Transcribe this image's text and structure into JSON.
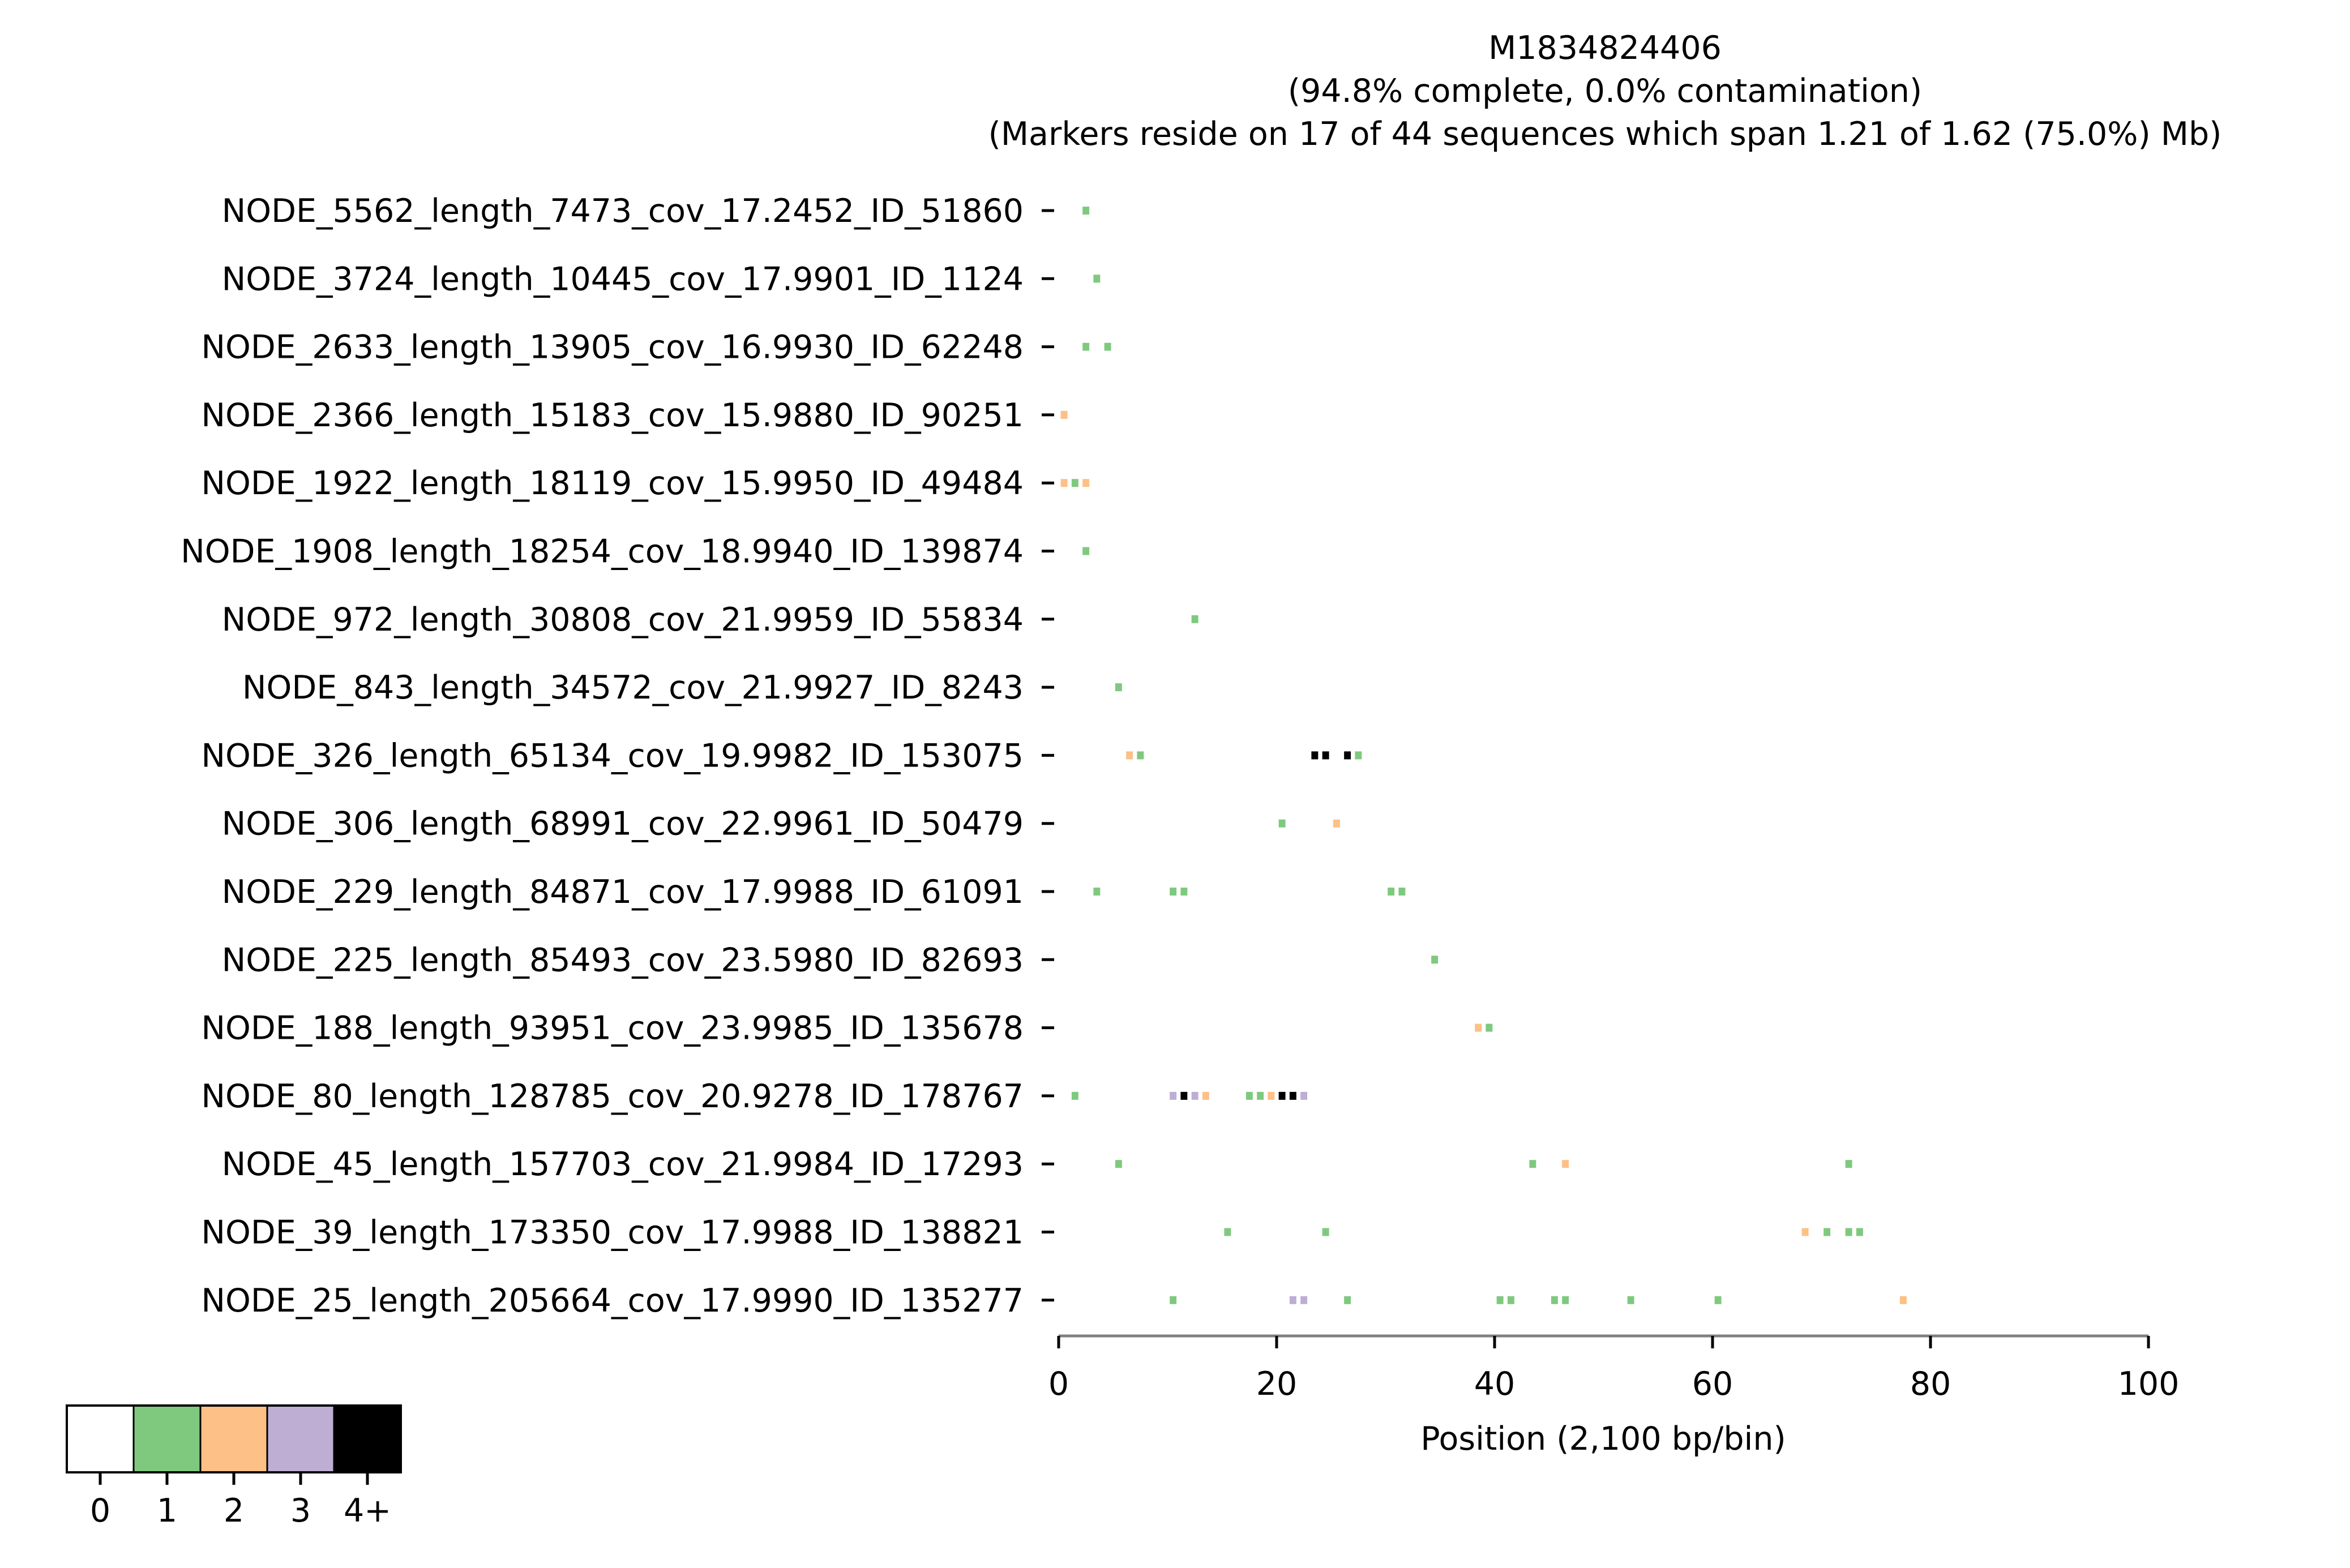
{
  "chart_data": {
    "type": "heatmap",
    "title": "M1834824406",
    "subtitle_1": "(94.8% complete, 0.0% contamination)",
    "subtitle_2": "(Markers reside on 17 of 44 sequences which span 1.21 of 1.62 (75.0%) Mb)",
    "xlabel": "Position (2,100 bp/bin)",
    "xlim": [
      0,
      100
    ],
    "xticks": [
      "0",
      "20",
      "40",
      "60",
      "80",
      "100"
    ],
    "xtick_values": [
      0,
      20,
      40,
      60,
      80,
      100
    ],
    "colors": {
      "0": "#ffffff",
      "1": "#7fc97f",
      "2": "#fdc086",
      "3": "#beaed4",
      "4": "#000000"
    },
    "legend": {
      "labels": [
        "0",
        "1",
        "2",
        "3",
        "4+"
      ],
      "colors": [
        "#ffffff",
        "#7fc97f",
        "#fdc086",
        "#beaed4",
        "#000000"
      ]
    },
    "sequences": [
      {
        "name": "NODE_5562_length_7473_cov_17.2452_ID_51860",
        "bins": [
          [
            2,
            1
          ]
        ]
      },
      {
        "name": "NODE_3724_length_10445_cov_17.9901_ID_1124",
        "bins": [
          [
            3,
            1
          ]
        ]
      },
      {
        "name": "NODE_2633_length_13905_cov_16.9930_ID_62248",
        "bins": [
          [
            2,
            1
          ],
          [
            4,
            1
          ]
        ]
      },
      {
        "name": "NODE_2366_length_15183_cov_15.9880_ID_90251",
        "bins": [
          [
            0,
            2
          ]
        ]
      },
      {
        "name": "NODE_1922_length_18119_cov_15.9950_ID_49484",
        "bins": [
          [
            0,
            2
          ],
          [
            1,
            1
          ],
          [
            2,
            2
          ]
        ]
      },
      {
        "name": "NODE_1908_length_18254_cov_18.9940_ID_139874",
        "bins": [
          [
            2,
            1
          ]
        ]
      },
      {
        "name": "NODE_972_length_30808_cov_21.9959_ID_55834",
        "bins": [
          [
            12,
            1
          ]
        ]
      },
      {
        "name": "NODE_843_length_34572_cov_21.9927_ID_8243",
        "bins": [
          [
            5,
            1
          ]
        ]
      },
      {
        "name": "NODE_326_length_65134_cov_19.9982_ID_153075",
        "bins": [
          [
            6,
            2
          ],
          [
            7,
            1
          ],
          [
            23,
            4
          ],
          [
            24,
            4
          ],
          [
            26,
            4
          ],
          [
            27,
            1
          ]
        ]
      },
      {
        "name": "NODE_306_length_68991_cov_22.9961_ID_50479",
        "bins": [
          [
            20,
            1
          ],
          [
            25,
            2
          ]
        ]
      },
      {
        "name": "NODE_229_length_84871_cov_17.9988_ID_61091",
        "bins": [
          [
            3,
            1
          ],
          [
            10,
            1
          ],
          [
            11,
            1
          ],
          [
            30,
            1
          ],
          [
            31,
            1
          ]
        ]
      },
      {
        "name": "NODE_225_length_85493_cov_23.5980_ID_82693",
        "bins": [
          [
            34,
            1
          ]
        ]
      },
      {
        "name": "NODE_188_length_93951_cov_23.9985_ID_135678",
        "bins": [
          [
            38,
            2
          ],
          [
            39,
            1
          ]
        ]
      },
      {
        "name": "NODE_80_length_128785_cov_20.9278_ID_178767",
        "bins": [
          [
            1,
            1
          ],
          [
            10,
            3
          ],
          [
            11,
            4
          ],
          [
            12,
            3
          ],
          [
            13,
            2
          ],
          [
            17,
            1
          ],
          [
            18,
            1
          ],
          [
            19,
            2
          ],
          [
            20,
            4
          ],
          [
            21,
            4
          ],
          [
            22,
            3
          ]
        ]
      },
      {
        "name": "NODE_45_length_157703_cov_21.9984_ID_17293",
        "bins": [
          [
            5,
            1
          ],
          [
            43,
            1
          ],
          [
            46,
            2
          ],
          [
            72,
            1
          ]
        ]
      },
      {
        "name": "NODE_39_length_173350_cov_17.9988_ID_138821",
        "bins": [
          [
            15,
            1
          ],
          [
            24,
            1
          ],
          [
            68,
            2
          ],
          [
            70,
            1
          ],
          [
            72,
            1
          ],
          [
            73,
            1
          ]
        ]
      },
      {
        "name": "NODE_25_length_205664_cov_17.9990_ID_135277",
        "bins": [
          [
            10,
            1
          ],
          [
            21,
            3
          ],
          [
            22,
            3
          ],
          [
            26,
            1
          ],
          [
            40,
            1
          ],
          [
            41,
            1
          ],
          [
            45,
            1
          ],
          [
            46,
            1
          ],
          [
            52,
            1
          ],
          [
            60,
            1
          ],
          [
            77,
            2
          ]
        ]
      }
    ]
  }
}
